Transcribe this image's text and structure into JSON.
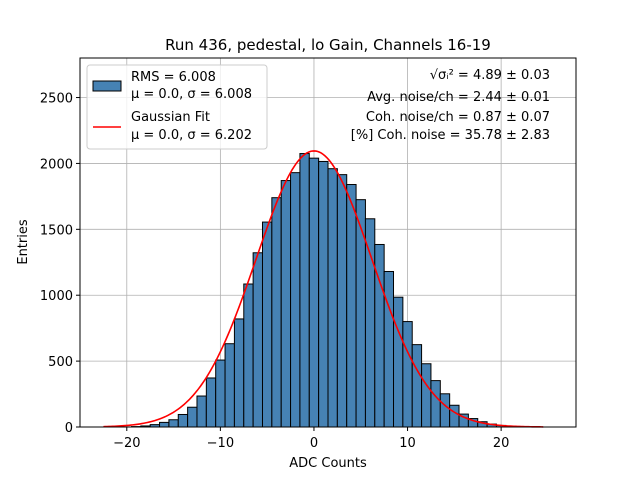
{
  "chart_data": {
    "type": "bar",
    "title": "Run 436, pedestal, lo Gain, Channels 16-19",
    "xlabel": "ADC Counts",
    "ylabel": "Entries",
    "xlim": [
      -25,
      28
    ],
    "ylim": [
      0,
      2800
    ],
    "grid": true,
    "x_ticks": [
      -20,
      -10,
      0,
      10,
      20
    ],
    "x_tick_labels": [
      "−20",
      "−10",
      "0",
      "10",
      "20"
    ],
    "y_ticks": [
      0,
      500,
      1000,
      1500,
      2000,
      2500
    ],
    "y_tick_labels": [
      "0",
      "500",
      "1000",
      "1500",
      "2000",
      "2500"
    ],
    "bin_width": 1,
    "bin_start": -19,
    "histogram": {
      "color": "#4682B4",
      "edge_color": "#000000",
      "values": [
        3,
        8,
        18,
        35,
        55,
        95,
        150,
        235,
        372,
        508,
        632,
        820,
        1085,
        1322,
        1555,
        1740,
        1870,
        1930,
        2075,
        2040,
        2015,
        1960,
        1915,
        1840,
        1725,
        1580,
        1385,
        1180,
        985,
        800,
        625,
        480,
        352,
        252,
        165,
        98,
        64,
        40,
        22,
        12,
        5,
        2
      ]
    },
    "gaussian_fit": {
      "color": "#FF0000",
      "mu": 0.0,
      "sigma": 6.202,
      "amplitude": 2095,
      "x_range": [
        -22.5,
        24.5
      ]
    },
    "legend": {
      "position": "top-left",
      "entries": [
        {
          "symbol": "patch",
          "line1": "RMS = 6.008",
          "line2": "μ = 0.0, σ = 6.008"
        },
        {
          "symbol": "line",
          "line1": "Gaussian Fit",
          "line2": "μ = 0.0, σ = 6.202"
        }
      ]
    },
    "annotations": {
      "position": "top-right",
      "lines": [
        {
          "prefix": "√σᵢ²",
          "value": " = 4.89 ± 0.03"
        },
        {
          "prefix": "",
          "value": "Avg. noise/ch = 2.44 ± 0.01"
        },
        {
          "prefix": "",
          "value": "Coh. noise/ch = 0.87 ± 0.07"
        },
        {
          "prefix": "",
          "value": "[%] Coh. noise = 35.78 ± 2.83"
        }
      ]
    }
  }
}
